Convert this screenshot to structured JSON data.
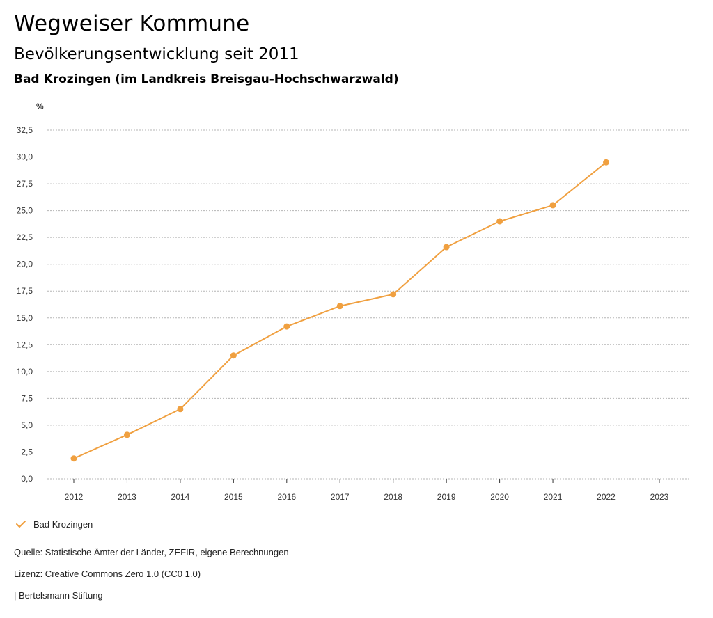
{
  "header": {
    "title": "Wegweiser Kommune",
    "subtitle": "Bevölkerungsentwicklung seit 2011",
    "region": "Bad Krozingen (im Landkreis Breisgau-Hochschwarzwald)"
  },
  "footer": {
    "source": "Quelle: Statistische Ämter der Länder, ZEFIR, eigene Berechnungen",
    "license": "Lizenz: Creative Commons Zero 1.0 (CC0 1.0)",
    "publisher": "| Bertelsmann Stiftung"
  },
  "colors": {
    "series": "#f0a040",
    "grid": "#b5b5b5",
    "axis": "#333333"
  },
  "chart_data": {
    "type": "line",
    "title": "Bevölkerungsentwicklung seit 2011",
    "xlabel": "",
    "ylabel": "%",
    "x": [
      "2012",
      "2013",
      "2014",
      "2015",
      "2016",
      "2017",
      "2018",
      "2019",
      "2020",
      "2021",
      "2022",
      "2023"
    ],
    "ylim": [
      0,
      32.5
    ],
    "yticks": [
      0,
      2.5,
      5,
      7.5,
      10,
      12.5,
      15,
      17.5,
      20,
      22.5,
      25,
      27.5,
      30,
      32.5
    ],
    "ytick_labels": [
      "0,0",
      "2,5",
      "5,0",
      "7,5",
      "10,0",
      "12,5",
      "15,0",
      "17,5",
      "20,0",
      "22,5",
      "25,0",
      "27,5",
      "30,0",
      "32,5"
    ],
    "grid": true,
    "legend": "bottom-left",
    "series": [
      {
        "name": "Bad Krozingen",
        "values": [
          1.9,
          4.1,
          6.5,
          11.5,
          14.2,
          16.1,
          17.2,
          21.6,
          24.0,
          25.5,
          29.5,
          null
        ]
      }
    ]
  }
}
